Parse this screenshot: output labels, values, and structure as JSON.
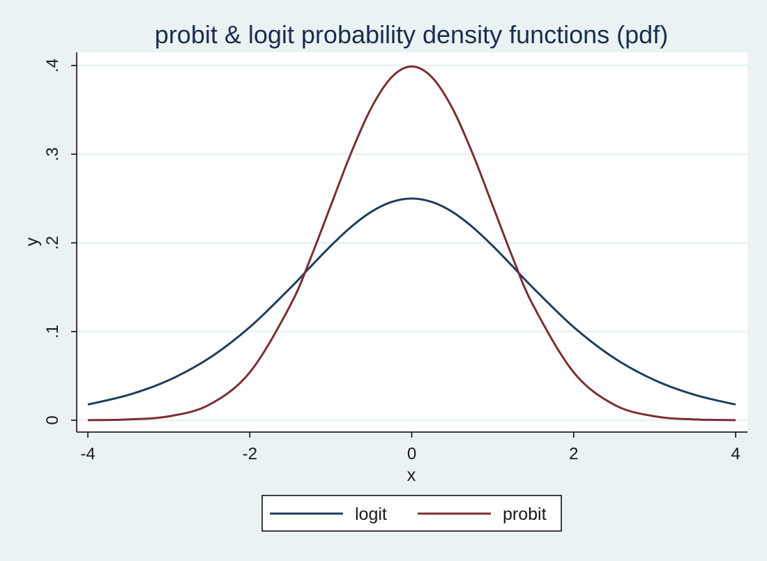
{
  "chart_data": {
    "type": "line",
    "title": "probit & logit probability density functions (pdf)",
    "xlabel": "x",
    "ylabel": "y",
    "xlim": [
      -4,
      4
    ],
    "ylim": [
      0,
      0.4
    ],
    "x_ticks": [
      {
        "value": -4,
        "label": "-4"
      },
      {
        "value": -2,
        "label": "-2"
      },
      {
        "value": 0,
        "label": "0"
      },
      {
        "value": 2,
        "label": "2"
      },
      {
        "value": 4,
        "label": "4"
      }
    ],
    "y_ticks": [
      {
        "value": 0,
        "label": "0"
      },
      {
        "value": 0.1,
        "label": ".1"
      },
      {
        "value": 0.2,
        "label": ".2"
      },
      {
        "value": 0.3,
        "label": ".3"
      },
      {
        "value": 0.4,
        "label": ".4"
      }
    ],
    "grid": true,
    "legend_position": "bottom",
    "x": [
      -4,
      -3.5,
      -3,
      -2.5,
      -2,
      -1.5,
      -1.25,
      -1,
      -0.75,
      -0.5,
      -0.25,
      0,
      0.25,
      0.5,
      0.75,
      1,
      1.25,
      1.5,
      2,
      2.5,
      3,
      3.5,
      4
    ],
    "series": [
      {
        "name": "logit",
        "color": "#1e3d5c",
        "values": [
          0.0177,
          0.0285,
          0.0452,
          0.0701,
          0.105,
          0.1491,
          0.1731,
          0.1966,
          0.2179,
          0.235,
          0.2461,
          0.25,
          0.2461,
          0.235,
          0.2179,
          0.1966,
          0.1731,
          0.1491,
          0.105,
          0.0701,
          0.0452,
          0.0285,
          0.0177
        ]
      },
      {
        "name": "probit",
        "color": "#7b2e34",
        "values": [
          0.0001,
          0.0009,
          0.0044,
          0.0175,
          0.054,
          0.1295,
          0.1826,
          0.242,
          0.3011,
          0.3521,
          0.3867,
          0.3989,
          0.3867,
          0.3521,
          0.3011,
          0.242,
          0.1826,
          0.1295,
          0.054,
          0.0175,
          0.0044,
          0.0009,
          0.0001
        ]
      }
    ]
  }
}
